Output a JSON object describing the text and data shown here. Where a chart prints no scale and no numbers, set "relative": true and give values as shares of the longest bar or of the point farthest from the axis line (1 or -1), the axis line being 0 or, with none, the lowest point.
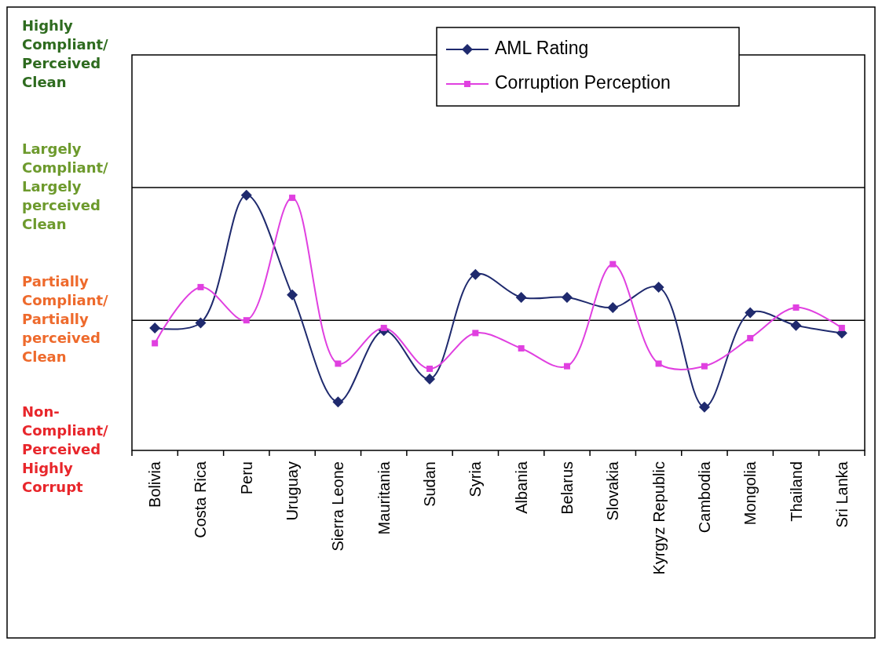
{
  "chart_data": {
    "type": "line",
    "relative": true,
    "categories": [
      "Bolivia",
      "Costa Rica",
      "Peru",
      "Uruguay",
      "Sierra Leone",
      "Mauritania",
      "Sudan",
      "Syria",
      "Albania",
      "Belarus",
      "Slovakia",
      "Kyrgyz Republic",
      "Cambodia",
      "Mongolia",
      "Thailand",
      "Sri Lanka"
    ],
    "series": [
      {
        "name": "AML Rating",
        "color": "#1f2a6e",
        "marker": "diamond",
        "values": [
          0.48,
          0.5,
          1,
          0.61,
          0.19,
          0.47,
          0.28,
          0.69,
          0.6,
          0.6,
          0.56,
          0.64,
          0.17,
          0.54,
          0.49,
          0.46
        ]
      },
      {
        "name": "Corruption Perception",
        "color": "#e040e0",
        "marker": "square",
        "values": [
          0.42,
          0.64,
          0.51,
          0.99,
          0.34,
          0.48,
          0.32,
          0.46,
          0.4,
          0.33,
          0.73,
          0.34,
          0.33,
          0.44,
          0.56,
          0.48
        ]
      }
    ],
    "ref_lines": [
      {
        "axis": "y",
        "value": 0.51,
        "label": "Partially Compliant/Partially perceived Clean"
      },
      {
        "axis": "y",
        "value": 1.03,
        "label": "Largely Compliant/Largely perceived Clean"
      }
    ],
    "annotations": [
      "Non-Compliant/Perceived Highly Corrupt",
      "Highly Compliant/Perceived Clean"
    ],
    "legend": "top right"
  }
}
